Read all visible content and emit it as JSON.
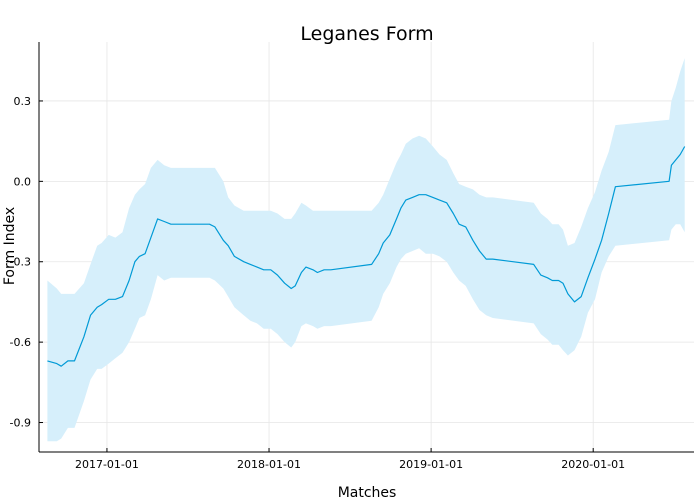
{
  "chart_data": {
    "type": "line",
    "title": "Leganes Form",
    "xlabel": "Matches",
    "ylabel": "Form Index",
    "x_ticks": [
      "2017-01-01",
      "2018-01-01",
      "2019-01-01",
      "2020-01-01"
    ],
    "y_ticks": [
      "0.3",
      "0.0",
      "-0.3",
      "-0.6",
      "-0.9"
    ],
    "xlim": [
      "2016-08-01",
      "2020-08-15"
    ],
    "ylim": [
      -1.01,
      0.52
    ],
    "grid": true,
    "legend": false,
    "band_color": "#d6effb",
    "line_color": "#009ad6",
    "series": [
      {
        "x": [
          "2016-08-20",
          "2016-09-10",
          "2016-09-20",
          "2016-10-05",
          "2016-10-20",
          "2016-11-10",
          "2016-11-25",
          "2016-12-10",
          "2016-12-20",
          "2017-01-05",
          "2017-01-20",
          "2017-02-05",
          "2017-02-20",
          "2017-03-05",
          "2017-03-15",
          "2017-03-28",
          "2017-04-10",
          "2017-04-25",
          "2017-05-10",
          "2017-05-25",
          "2017-08-20",
          "2017-09-01",
          "2017-09-20",
          "2017-10-01",
          "2017-10-15",
          "2017-11-05",
          "2017-11-20",
          "2017-12-05",
          "2017-12-20",
          "2018-01-05",
          "2018-01-20",
          "2018-02-05",
          "2018-02-20",
          "2018-03-01",
          "2018-03-15",
          "2018-03-25",
          "2018-04-10",
          "2018-04-20",
          "2018-05-05",
          "2018-05-20",
          "2018-08-20",
          "2018-09-05",
          "2018-09-15",
          "2018-09-30",
          "2018-10-15",
          "2018-10-25",
          "2018-11-05",
          "2018-11-20",
          "2018-12-05",
          "2018-12-20",
          "2019-01-05",
          "2019-01-20",
          "2019-02-05",
          "2019-02-20",
          "2019-03-05",
          "2019-03-20",
          "2019-04-05",
          "2019-04-20",
          "2019-05-05",
          "2019-05-20",
          "2019-08-20",
          "2019-09-05",
          "2019-09-20",
          "2019-10-01",
          "2019-10-15",
          "2019-10-25",
          "2019-11-05",
          "2019-11-20",
          "2019-12-05",
          "2019-12-20",
          "2020-01-05",
          "2020-01-20",
          "2020-02-05",
          "2020-02-20",
          "2020-06-20",
          "2020-06-25",
          "2020-07-05",
          "2020-07-15",
          "2020-07-25"
        ],
        "mean": [
          -0.67,
          -0.68,
          -0.69,
          -0.67,
          -0.67,
          -0.58,
          -0.5,
          -0.47,
          -0.46,
          -0.44,
          -0.44,
          -0.43,
          -0.37,
          -0.3,
          -0.28,
          -0.27,
          -0.21,
          -0.14,
          -0.15,
          -0.16,
          -0.16,
          -0.17,
          -0.22,
          -0.24,
          -0.28,
          -0.3,
          -0.31,
          -0.32,
          -0.33,
          -0.33,
          -0.35,
          -0.38,
          -0.4,
          -0.39,
          -0.34,
          -0.32,
          -0.33,
          -0.34,
          -0.33,
          -0.33,
          -0.31,
          -0.27,
          -0.23,
          -0.2,
          -0.14,
          -0.1,
          -0.07,
          -0.06,
          -0.05,
          -0.05,
          -0.06,
          -0.07,
          -0.08,
          -0.12,
          -0.16,
          -0.17,
          -0.22,
          -0.26,
          -0.29,
          -0.29,
          -0.31,
          -0.35,
          -0.36,
          -0.37,
          -0.37,
          -0.38,
          -0.42,
          -0.45,
          -0.43,
          -0.36,
          -0.29,
          -0.22,
          -0.12,
          -0.02,
          0.0,
          0.06,
          0.08,
          0.1,
          0.13
        ],
        "upper": [
          -0.37,
          -0.4,
          -0.42,
          -0.42,
          -0.42,
          -0.38,
          -0.31,
          -0.24,
          -0.23,
          -0.2,
          -0.21,
          -0.19,
          -0.1,
          -0.05,
          -0.03,
          -0.01,
          0.05,
          0.08,
          0.06,
          0.05,
          0.05,
          0.05,
          0.0,
          -0.06,
          -0.09,
          -0.11,
          -0.11,
          -0.11,
          -0.11,
          -0.11,
          -0.12,
          -0.14,
          -0.14,
          -0.12,
          -0.08,
          -0.09,
          -0.11,
          -0.11,
          -0.11,
          -0.11,
          -0.11,
          -0.08,
          -0.05,
          0.01,
          0.07,
          0.1,
          0.14,
          0.16,
          0.17,
          0.16,
          0.13,
          0.1,
          0.08,
          0.03,
          -0.01,
          -0.02,
          -0.03,
          -0.05,
          -0.06,
          -0.06,
          -0.08,
          -0.12,
          -0.14,
          -0.16,
          -0.16,
          -0.18,
          -0.24,
          -0.23,
          -0.17,
          -0.1,
          -0.04,
          0.04,
          0.11,
          0.21,
          0.23,
          0.3,
          0.35,
          0.41,
          0.46
        ],
        "lower": [
          -0.97,
          -0.97,
          -0.96,
          -0.92,
          -0.92,
          -0.82,
          -0.74,
          -0.7,
          -0.7,
          -0.68,
          -0.66,
          -0.64,
          -0.6,
          -0.55,
          -0.51,
          -0.5,
          -0.44,
          -0.35,
          -0.37,
          -0.36,
          -0.36,
          -0.37,
          -0.4,
          -0.43,
          -0.47,
          -0.5,
          -0.52,
          -0.53,
          -0.55,
          -0.55,
          -0.57,
          -0.6,
          -0.62,
          -0.6,
          -0.54,
          -0.53,
          -0.54,
          -0.55,
          -0.54,
          -0.54,
          -0.52,
          -0.47,
          -0.42,
          -0.38,
          -0.32,
          -0.29,
          -0.27,
          -0.26,
          -0.25,
          -0.27,
          -0.27,
          -0.28,
          -0.3,
          -0.34,
          -0.37,
          -0.39,
          -0.44,
          -0.48,
          -0.5,
          -0.51,
          -0.53,
          -0.57,
          -0.59,
          -0.61,
          -0.61,
          -0.63,
          -0.65,
          -0.63,
          -0.58,
          -0.49,
          -0.44,
          -0.34,
          -0.28,
          -0.24,
          -0.22,
          -0.18,
          -0.16,
          -0.16,
          -0.19
        ]
      }
    ]
  }
}
